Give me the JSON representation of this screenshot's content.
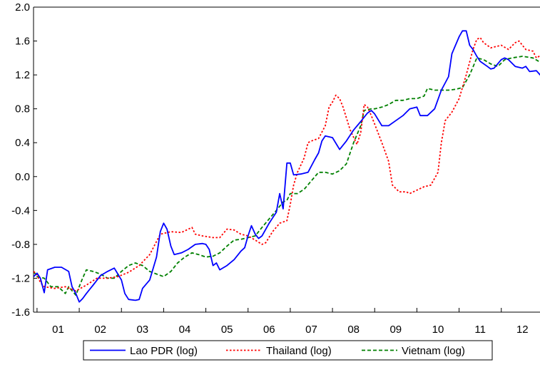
{
  "chart_data": {
    "type": "line",
    "title": "",
    "xlabel": "",
    "ylabel": "",
    "x_start": 2000.917,
    "x_end": 2012.917,
    "ylim": [
      -1.6,
      2.0
    ],
    "yticks": [
      "2.0",
      "1.6",
      "1.2",
      "0.8",
      "0.4",
      "0.0",
      "-0.4",
      "-0.8",
      "-1.2",
      "-1.6"
    ],
    "ytick_values": [
      2.0,
      1.6,
      1.2,
      0.8,
      0.4,
      0.0,
      -0.4,
      -0.8,
      -1.2,
      -1.6
    ],
    "xtick_labels": [
      "01",
      "02",
      "03",
      "04",
      "05",
      "06",
      "07",
      "08",
      "09",
      "10",
      "11",
      "12"
    ],
    "grid": false,
    "legend_position": "bottom",
    "series": [
      {
        "name": "Lao PDR (log)",
        "color": "#0000ff",
        "style": "solid",
        "points": [
          [
            2000.92,
            -1.18
          ],
          [
            2001.0,
            -1.14
          ],
          [
            2001.08,
            -1.2
          ],
          [
            2001.17,
            -1.37
          ],
          [
            2001.25,
            -1.1
          ],
          [
            2001.42,
            -1.07
          ],
          [
            2001.58,
            -1.07
          ],
          [
            2001.75,
            -1.12
          ],
          [
            2001.83,
            -1.3
          ],
          [
            2001.92,
            -1.38
          ],
          [
            2002.0,
            -1.48
          ],
          [
            2002.08,
            -1.44
          ],
          [
            2002.17,
            -1.38
          ],
          [
            2002.33,
            -1.28
          ],
          [
            2002.5,
            -1.17
          ],
          [
            2002.67,
            -1.12
          ],
          [
            2002.83,
            -1.08
          ],
          [
            2003.0,
            -1.22
          ],
          [
            2003.08,
            -1.38
          ],
          [
            2003.17,
            -1.45
          ],
          [
            2003.33,
            -1.46
          ],
          [
            2003.42,
            -1.45
          ],
          [
            2003.5,
            -1.32
          ],
          [
            2003.67,
            -1.22
          ],
          [
            2003.83,
            -0.95
          ],
          [
            2003.92,
            -0.65
          ],
          [
            2004.0,
            -0.55
          ],
          [
            2004.08,
            -0.62
          ],
          [
            2004.17,
            -0.82
          ],
          [
            2004.25,
            -0.92
          ],
          [
            2004.42,
            -0.9
          ],
          [
            2004.58,
            -0.86
          ],
          [
            2004.75,
            -0.8
          ],
          [
            2004.92,
            -0.79
          ],
          [
            2005.0,
            -0.8
          ],
          [
            2005.08,
            -0.86
          ],
          [
            2005.17,
            -1.05
          ],
          [
            2005.25,
            -1.02
          ],
          [
            2005.33,
            -1.1
          ],
          [
            2005.5,
            -1.05
          ],
          [
            2005.67,
            -0.98
          ],
          [
            2005.83,
            -0.88
          ],
          [
            2005.92,
            -0.84
          ],
          [
            2006.0,
            -0.7
          ],
          [
            2006.08,
            -0.58
          ],
          [
            2006.17,
            -0.68
          ],
          [
            2006.25,
            -0.73
          ],
          [
            2006.33,
            -0.7
          ],
          [
            2006.5,
            -0.55
          ],
          [
            2006.67,
            -0.42
          ],
          [
            2006.75,
            -0.2
          ],
          [
            2006.83,
            -0.38
          ],
          [
            2006.92,
            0.16
          ],
          [
            2007.0,
            0.16
          ],
          [
            2007.08,
            0.02
          ],
          [
            2007.25,
            0.03
          ],
          [
            2007.42,
            0.05
          ],
          [
            2007.58,
            0.2
          ],
          [
            2007.67,
            0.28
          ],
          [
            2007.75,
            0.42
          ],
          [
            2007.83,
            0.48
          ],
          [
            2008.0,
            0.46
          ],
          [
            2008.17,
            0.32
          ],
          [
            2008.33,
            0.42
          ],
          [
            2008.5,
            0.55
          ],
          [
            2008.67,
            0.65
          ],
          [
            2008.83,
            0.75
          ],
          [
            2008.92,
            0.78
          ],
          [
            2009.0,
            0.74
          ],
          [
            2009.17,
            0.6
          ],
          [
            2009.33,
            0.6
          ],
          [
            2009.5,
            0.66
          ],
          [
            2009.67,
            0.72
          ],
          [
            2009.83,
            0.8
          ],
          [
            2010.0,
            0.82
          ],
          [
            2010.08,
            0.72
          ],
          [
            2010.25,
            0.72
          ],
          [
            2010.42,
            0.8
          ],
          [
            2010.58,
            1.02
          ],
          [
            2010.75,
            1.18
          ],
          [
            2010.83,
            1.45
          ],
          [
            2011.0,
            1.65
          ],
          [
            2011.08,
            1.72
          ],
          [
            2011.17,
            1.72
          ],
          [
            2011.25,
            1.55
          ],
          [
            2011.33,
            1.5
          ],
          [
            2011.42,
            1.42
          ],
          [
            2011.5,
            1.36
          ],
          [
            2011.67,
            1.3
          ],
          [
            2011.75,
            1.27
          ],
          [
            2011.83,
            1.28
          ],
          [
            2012.0,
            1.38
          ],
          [
            2012.08,
            1.4
          ],
          [
            2012.17,
            1.38
          ],
          [
            2012.33,
            1.3
          ],
          [
            2012.5,
            1.28
          ],
          [
            2012.58,
            1.3
          ],
          [
            2012.67,
            1.24
          ],
          [
            2012.83,
            1.25
          ],
          [
            2012.92,
            1.2
          ],
          [
            2013.08,
            1.2
          ],
          [
            2013.25,
            1.26
          ],
          [
            2013.33,
            1.25
          ],
          [
            2013.42,
            1.18
          ]
        ]
      },
      {
        "name": "Thailand (log)",
        "color": "#ff0000",
        "style": "dotted",
        "points": [
          [
            2000.92,
            -1.12
          ],
          [
            2001.0,
            -1.16
          ],
          [
            2001.08,
            -1.25
          ],
          [
            2001.17,
            -1.3
          ],
          [
            2001.42,
            -1.32
          ],
          [
            2001.67,
            -1.3
          ],
          [
            2001.92,
            -1.35
          ],
          [
            2002.17,
            -1.28
          ],
          [
            2002.42,
            -1.2
          ],
          [
            2002.67,
            -1.2
          ],
          [
            2002.92,
            -1.18
          ],
          [
            2003.17,
            -1.13
          ],
          [
            2003.42,
            -1.05
          ],
          [
            2003.67,
            -0.92
          ],
          [
            2003.92,
            -0.68
          ],
          [
            2004.17,
            -0.65
          ],
          [
            2004.42,
            -0.66
          ],
          [
            2004.67,
            -0.6
          ],
          [
            2004.75,
            -0.68
          ],
          [
            2004.92,
            -0.7
          ],
          [
            2005.17,
            -0.72
          ],
          [
            2005.33,
            -0.72
          ],
          [
            2005.5,
            -0.62
          ],
          [
            2005.67,
            -0.63
          ],
          [
            2005.83,
            -0.68
          ],
          [
            2006.0,
            -0.7
          ],
          [
            2006.17,
            -0.75
          ],
          [
            2006.33,
            -0.8
          ],
          [
            2006.42,
            -0.78
          ],
          [
            2006.58,
            -0.65
          ],
          [
            2006.75,
            -0.55
          ],
          [
            2006.92,
            -0.52
          ],
          [
            2007.0,
            -0.33
          ],
          [
            2007.08,
            -0.1
          ],
          [
            2007.17,
            0.05
          ],
          [
            2007.33,
            0.22
          ],
          [
            2007.42,
            0.4
          ],
          [
            2007.5,
            0.42
          ],
          [
            2007.67,
            0.45
          ],
          [
            2007.83,
            0.6
          ],
          [
            2007.92,
            0.82
          ],
          [
            2008.0,
            0.88
          ],
          [
            2008.08,
            0.96
          ],
          [
            2008.17,
            0.92
          ],
          [
            2008.25,
            0.82
          ],
          [
            2008.42,
            0.55
          ],
          [
            2008.58,
            0.38
          ],
          [
            2008.67,
            0.52
          ],
          [
            2008.75,
            0.85
          ],
          [
            2008.83,
            0.82
          ],
          [
            2008.92,
            0.72
          ],
          [
            2009.0,
            0.62
          ],
          [
            2009.17,
            0.4
          ],
          [
            2009.33,
            0.18
          ],
          [
            2009.42,
            -0.1
          ],
          [
            2009.58,
            -0.18
          ],
          [
            2009.75,
            -0.18
          ],
          [
            2009.83,
            -0.2
          ],
          [
            2010.0,
            -0.16
          ],
          [
            2010.17,
            -0.12
          ],
          [
            2010.33,
            -0.1
          ],
          [
            2010.42,
            -0.02
          ],
          [
            2010.5,
            0.05
          ],
          [
            2010.58,
            0.4
          ],
          [
            2010.67,
            0.66
          ],
          [
            2010.83,
            0.76
          ],
          [
            2011.0,
            0.92
          ],
          [
            2011.17,
            1.2
          ],
          [
            2011.33,
            1.5
          ],
          [
            2011.42,
            1.62
          ],
          [
            2011.5,
            1.64
          ],
          [
            2011.58,
            1.58
          ],
          [
            2011.75,
            1.52
          ],
          [
            2012.0,
            1.55
          ],
          [
            2012.17,
            1.5
          ],
          [
            2012.33,
            1.58
          ],
          [
            2012.42,
            1.6
          ],
          [
            2012.58,
            1.5
          ],
          [
            2012.75,
            1.48
          ],
          [
            2012.83,
            1.4
          ],
          [
            2013.0,
            1.45
          ],
          [
            2013.17,
            1.38
          ],
          [
            2013.33,
            1.4
          ],
          [
            2013.42,
            1.38
          ]
        ]
      },
      {
        "name": "Vietnam (log)",
        "color": "#008000",
        "style": "dashed",
        "points": [
          [
            2000.92,
            -1.12
          ],
          [
            2001.0,
            -1.18
          ],
          [
            2001.17,
            -1.2
          ],
          [
            2001.33,
            -1.3
          ],
          [
            2001.5,
            -1.3
          ],
          [
            2001.67,
            -1.38
          ],
          [
            2001.75,
            -1.3
          ],
          [
            2001.92,
            -1.4
          ],
          [
            2002.08,
            -1.2
          ],
          [
            2002.17,
            -1.1
          ],
          [
            2002.33,
            -1.12
          ],
          [
            2002.5,
            -1.15
          ],
          [
            2002.67,
            -1.2
          ],
          [
            2002.83,
            -1.2
          ],
          [
            2003.0,
            -1.12
          ],
          [
            2003.17,
            -1.05
          ],
          [
            2003.33,
            -1.02
          ],
          [
            2003.5,
            -1.05
          ],
          [
            2003.67,
            -1.12
          ],
          [
            2003.83,
            -1.15
          ],
          [
            2004.0,
            -1.18
          ],
          [
            2004.17,
            -1.12
          ],
          [
            2004.33,
            -1.02
          ],
          [
            2004.5,
            -0.95
          ],
          [
            2004.67,
            -0.9
          ],
          [
            2004.83,
            -0.92
          ],
          [
            2005.0,
            -0.95
          ],
          [
            2005.17,
            -0.94
          ],
          [
            2005.33,
            -0.9
          ],
          [
            2005.5,
            -0.82
          ],
          [
            2005.67,
            -0.75
          ],
          [
            2005.83,
            -0.74
          ],
          [
            2006.0,
            -0.72
          ],
          [
            2006.17,
            -0.7
          ],
          [
            2006.33,
            -0.6
          ],
          [
            2006.5,
            -0.5
          ],
          [
            2006.67,
            -0.4
          ],
          [
            2006.83,
            -0.3
          ],
          [
            2006.92,
            -0.28
          ],
          [
            2007.0,
            -0.2
          ],
          [
            2007.17,
            -0.2
          ],
          [
            2007.33,
            -0.15
          ],
          [
            2007.5,
            -0.05
          ],
          [
            2007.67,
            0.05
          ],
          [
            2007.83,
            0.05
          ],
          [
            2008.0,
            0.03
          ],
          [
            2008.17,
            0.07
          ],
          [
            2008.33,
            0.15
          ],
          [
            2008.5,
            0.4
          ],
          [
            2008.67,
            0.6
          ],
          [
            2008.75,
            0.78
          ],
          [
            2008.92,
            0.8
          ],
          [
            2009.0,
            0.8
          ],
          [
            2009.17,
            0.82
          ],
          [
            2009.33,
            0.85
          ],
          [
            2009.5,
            0.9
          ],
          [
            2009.67,
            0.9
          ],
          [
            2009.83,
            0.92
          ],
          [
            2010.0,
            0.92
          ],
          [
            2010.17,
            0.95
          ],
          [
            2010.25,
            1.04
          ],
          [
            2010.42,
            1.02
          ],
          [
            2010.58,
            1.02
          ],
          [
            2010.75,
            1.02
          ],
          [
            2010.92,
            1.03
          ],
          [
            2011.08,
            1.05
          ],
          [
            2011.25,
            1.2
          ],
          [
            2011.42,
            1.4
          ],
          [
            2011.58,
            1.38
          ],
          [
            2011.75,
            1.33
          ],
          [
            2011.92,
            1.3
          ],
          [
            2012.08,
            1.38
          ],
          [
            2012.25,
            1.4
          ],
          [
            2012.5,
            1.42
          ],
          [
            2012.75,
            1.4
          ],
          [
            2012.92,
            1.35
          ],
          [
            2013.08,
            1.32
          ],
          [
            2013.25,
            1.32
          ],
          [
            2013.42,
            1.33
          ]
        ]
      }
    ]
  }
}
